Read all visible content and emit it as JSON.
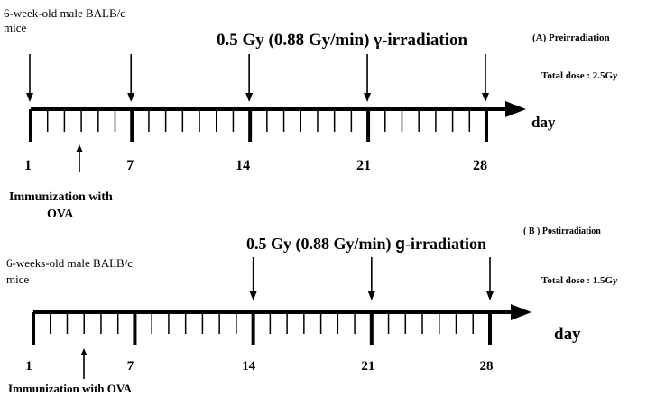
{
  "panel_a": {
    "mice_label_line1": "6-week-old male BALB/c",
    "mice_label_line2": "mice",
    "irradiation_title": "0.5 Gy  (0.88 Gy/min) γ-irradiation",
    "panel_label": "(A)  Preirradiation",
    "total_dose": "Total dose  : 2.5Gy",
    "axis_unit": "day",
    "day_labels": [
      "1",
      "7",
      "14",
      "21",
      "28"
    ],
    "irradiation_days": [
      1,
      7,
      14,
      21,
      28
    ],
    "immunization_day": 4,
    "immunization_line1": "Immunization with",
    "immunization_line2": "OVA"
  },
  "panel_b": {
    "mice_label_line1": "6-weeks-old male BALB/c",
    "mice_label_line2": "mice",
    "irradiation_title_prefix": "0.5 Gy  (0.88 Gy/min) ",
    "irradiation_title_symbol": "g",
    "irradiation_title_suffix": "-irradiation",
    "panel_label": "( B ) Postirradiation",
    "total_dose": "Total dose  : 1.5Gy",
    "axis_unit": "day",
    "day_labels": [
      "1",
      "7",
      "14",
      "21",
      "28"
    ],
    "irradiation_days": [
      14,
      21,
      28
    ],
    "immunization_day": 4,
    "immunization_text": "Immunization with  OVA"
  }
}
